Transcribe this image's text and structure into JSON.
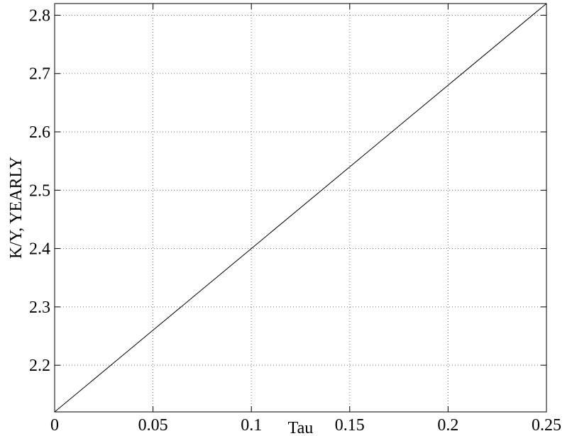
{
  "chart_data": {
    "type": "line",
    "title": "",
    "xlabel": "Tau",
    "ylabel": "K/Y, YEARLY",
    "xlim": [
      0,
      0.25
    ],
    "ylim": [
      2.12,
      2.82
    ],
    "grid": true,
    "x_ticks": [
      0,
      0.05,
      0.1,
      0.15,
      0.2,
      0.25
    ],
    "x_tick_labels": [
      "0",
      "0.05",
      "0.1",
      "0.15",
      "0.2",
      "0.25"
    ],
    "y_ticks": [
      2.2,
      2.3,
      2.4,
      2.5,
      2.6,
      2.7,
      2.8
    ],
    "y_tick_labels": [
      "2.2",
      "2.3",
      "2.4",
      "2.5",
      "2.6",
      "2.7",
      "2.8"
    ],
    "series": [
      {
        "color": "#000000",
        "x": [
          0,
          0.05,
          0.1,
          0.15,
          0.2,
          0.25
        ],
        "y": [
          2.12,
          2.26,
          2.4,
          2.54,
          2.68,
          2.82
        ]
      }
    ]
  }
}
